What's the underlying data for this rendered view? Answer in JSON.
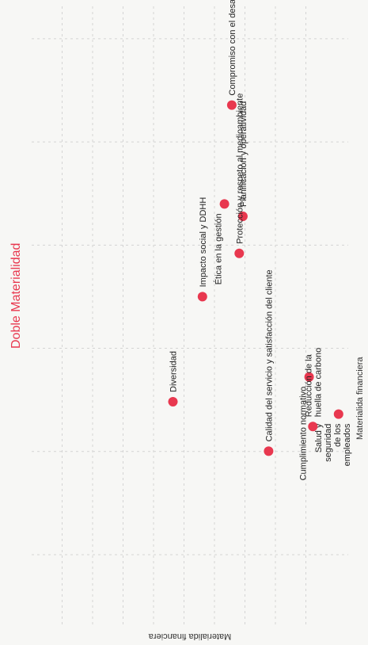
{
  "title": "Doble Materialidad",
  "colors": {
    "accent": "#e8384f",
    "dot": "#e8384f",
    "grid": "#d4d4d4",
    "text": "#222222"
  },
  "chart_data": {
    "type": "scatter",
    "title": "Doble Materialidad",
    "xlabel": "Materialida financiera",
    "ylabel": "Materialida financiera",
    "grid": true,
    "orientation": "rotated-90-cw",
    "xlim": [
      0,
      1
    ],
    "ylim": [
      0,
      1
    ],
    "points": [
      {
        "label": "Compromiso con el desarrollo sostenible",
        "x": 0.17,
        "y": 0.63
      },
      {
        "label": "Planificación y operatividad",
        "x": 0.35,
        "y": 0.66
      },
      {
        "label": "Protección y respeto al medioambiente",
        "x": 0.41,
        "y": 0.65
      },
      {
        "label": "Ética en la gestión",
        "x": 0.33,
        "y": 0.61
      },
      {
        "label": "Impacto social y DDHH",
        "x": 0.48,
        "y": 0.55
      },
      {
        "label": "Diversidad",
        "x": 0.65,
        "y": 0.47
      },
      {
        "label": "Cumplimiento normativo",
        "x": 0.61,
        "y": 0.84
      },
      {
        "label": "Calidad del servicio y satisfacción del cliente",
        "x": 0.73,
        "y": 0.73
      },
      {
        "label": "Salud y seguridad de los empleados",
        "x": 0.67,
        "y": 0.92
      },
      {
        "label": "Reducción de la huella de carbono",
        "x": 0.69,
        "y": 0.85
      }
    ]
  }
}
